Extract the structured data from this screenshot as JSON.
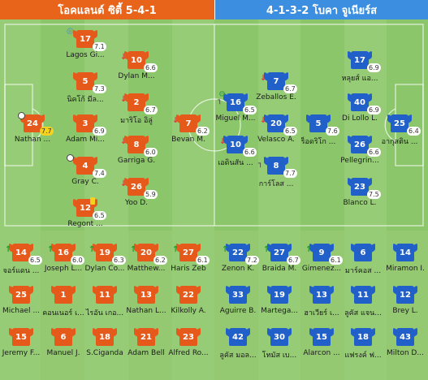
{
  "header": {
    "home": "โอคแลนด์ ซิตี้ 5-4-1",
    "away": "4-1-3-2 โบคา จูเนียร์ส"
  },
  "home_starters": [
    {
      "num": "17",
      "name": "Lagos Gi...",
      "rating": "7.1",
      "events": [
        "clock"
      ]
    },
    {
      "num": "5",
      "name": "นิคโก้ มีล...",
      "rating": "7.3",
      "events": []
    },
    {
      "num": "3",
      "name": "Adam Mi...",
      "rating": "6.9",
      "events": []
    },
    {
      "num": "4",
      "name": "Gray C.",
      "rating": "7.4",
      "events": [
        "ball"
      ]
    },
    {
      "num": "12",
      "name": "Regont ...",
      "rating": "6.5",
      "events": [
        "card"
      ]
    },
    {
      "num": "10",
      "name": "Dylan M...",
      "rating": "6.6",
      "events": [
        "sub-off"
      ]
    },
    {
      "num": "2",
      "name": "มาริโอ อิลู่",
      "rating": "6.7",
      "events": [
        "sub-off"
      ]
    },
    {
      "num": "8",
      "name": "Garriga G.",
      "rating": "6.0",
      "events": [
        "sub-off"
      ]
    },
    {
      "num": "26",
      "name": "Yoo D.",
      "rating": "5.9",
      "events": [
        "sub-off"
      ]
    },
    {
      "num": "24",
      "name": "Nathan ...",
      "rating": "7.7",
      "events": [
        "ball",
        "motm"
      ]
    },
    {
      "num": "7",
      "name": "Bevan M.",
      "rating": "6.2",
      "events": [
        "sub-off"
      ]
    }
  ],
  "away_starters": [
    {
      "num": "16",
      "name": "Miguel M...",
      "rating": "6.5",
      "events": [
        "gear",
        "boot"
      ]
    },
    {
      "num": "10",
      "name": "เอดินสัน ...",
      "rating": "6.6",
      "events": [
        "sub-off"
      ]
    },
    {
      "num": "7",
      "name": "Zeballos E.",
      "rating": "6.7",
      "events": [
        "sub-off"
      ]
    },
    {
      "num": "20",
      "name": "Velasco A.",
      "rating": "6.5",
      "events": [
        "sub-off"
      ]
    },
    {
      "num": "8",
      "name": "การ์โลส ...",
      "rating": "7.7",
      "events": [
        "boot"
      ]
    },
    {
      "num": "5",
      "name": "ร็อดริโก ...",
      "rating": "7.6",
      "events": []
    },
    {
      "num": "17",
      "name": "หลุยส์ แอ...",
      "rating": "6.9",
      "events": []
    },
    {
      "num": "40",
      "name": "Di Lollo L.",
      "rating": "6.9",
      "events": []
    },
    {
      "num": "26",
      "name": "Pellegrin...",
      "rating": "6.6",
      "events": []
    },
    {
      "num": "23",
      "name": "Blanco L.",
      "rating": "7.5",
      "events": []
    },
    {
      "num": "25",
      "name": "อากุสติน ...",
      "rating": "6.4",
      "events": []
    }
  ],
  "home_bench": [
    {
      "num": "14",
      "name": "จอร์แดน ...",
      "rating": "6.5",
      "events": [
        "sub-on"
      ]
    },
    {
      "num": "16",
      "name": "Joseph L...",
      "rating": "6.0",
      "events": [
        "sub-on"
      ]
    },
    {
      "num": "19",
      "name": "Dylan Co...",
      "rating": "6.3",
      "events": [
        "sub-on"
      ]
    },
    {
      "num": "20",
      "name": "Matthew...",
      "rating": "6.2",
      "events": [
        "sub-on"
      ]
    },
    {
      "num": "27",
      "name": "Haris Zeb",
      "rating": "6.1",
      "events": [
        "sub-on"
      ]
    },
    {
      "num": "25",
      "name": "Michael ...",
      "rating": "",
      "events": []
    },
    {
      "num": "1",
      "name": "คอนเนอร์ เ...",
      "rating": "",
      "events": []
    },
    {
      "num": "11",
      "name": "ไรอัน เกอ...",
      "rating": "",
      "events": []
    },
    {
      "num": "13",
      "name": "Nathan L...",
      "rating": "",
      "events": []
    },
    {
      "num": "22",
      "name": "Kilkolly A.",
      "rating": "",
      "events": []
    },
    {
      "num": "15",
      "name": "Jeremy F...",
      "rating": "",
      "events": []
    },
    {
      "num": "6",
      "name": "Manuel J.",
      "rating": "",
      "events": []
    },
    {
      "num": "18",
      "name": "S.Ciganda",
      "rating": "",
      "events": []
    },
    {
      "num": "21",
      "name": "Adam Bell",
      "rating": "",
      "events": []
    },
    {
      "num": "23",
      "name": "Alfred Ro...",
      "rating": "",
      "events": []
    }
  ],
  "away_bench": [
    {
      "num": "22",
      "name": "Zenon K.",
      "rating": "7.2",
      "events": [
        "sub-on"
      ]
    },
    {
      "num": "27",
      "name": "Braida M.",
      "rating": "6.7",
      "events": [
        "sub-on"
      ]
    },
    {
      "num": "9",
      "name": "Gimenez...",
      "rating": "6.1",
      "events": [
        "sub-on"
      ]
    },
    {
      "num": "6",
      "name": "มาร์คอส ...",
      "rating": "",
      "events": []
    },
    {
      "num": "14",
      "name": "Miramon I.",
      "rating": "",
      "events": []
    },
    {
      "num": "33",
      "name": "Aguirre B.",
      "rating": "",
      "events": []
    },
    {
      "num": "19",
      "name": "Martega...",
      "rating": "",
      "events": []
    },
    {
      "num": "13",
      "name": "ฮาเวียร์ เ...",
      "rating": "",
      "events": []
    },
    {
      "num": "11",
      "name": "ลูคัส แจน...",
      "rating": "",
      "events": []
    },
    {
      "num": "12",
      "name": "Brey L.",
      "rating": "",
      "events": []
    },
    {
      "num": "42",
      "name": "ลูคัส มอล...",
      "rating": "",
      "events": []
    },
    {
      "num": "30",
      "name": "โทมัส เบ...",
      "rating": "",
      "events": []
    },
    {
      "num": "15",
      "name": "Alarcon ...",
      "rating": "",
      "events": []
    },
    {
      "num": "18",
      "name": "แฟรงค์ ฟ...",
      "rating": "",
      "events": []
    },
    {
      "num": "43",
      "name": "Milton D...",
      "rating": "",
      "events": []
    }
  ]
}
